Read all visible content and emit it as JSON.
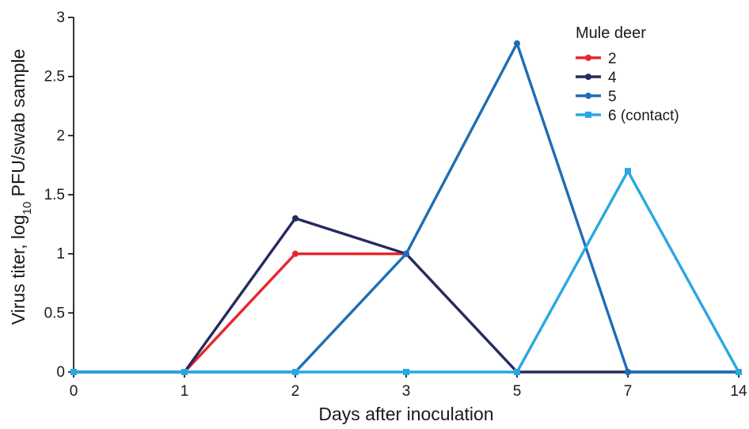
{
  "chart_data": {
    "type": "line",
    "title": "",
    "xlabel": "Days after inoculation",
    "ylabel": {
      "prefix": "Virus titer, log",
      "subscript": "10",
      "suffix": " PFU/swab sample"
    },
    "categories": [
      "0",
      "1",
      "2",
      "3",
      "5",
      "7",
      "14"
    ],
    "ylim": [
      0,
      3
    ],
    "yticks": [
      "0",
      "0.5",
      "1",
      "1.5",
      "2",
      "2.5",
      "3"
    ],
    "grid": false,
    "legend": {
      "title": "Mule deer",
      "placement": "top-right"
    },
    "series": [
      {
        "name": "2",
        "color": "#e8262b",
        "marker": "circle",
        "values": [
          0,
          0,
          1.0,
          1.0,
          null,
          null,
          null
        ]
      },
      {
        "name": "4",
        "color": "#262a5e",
        "marker": "circle",
        "values": [
          0,
          0,
          1.3,
          1.0,
          0,
          0,
          0
        ]
      },
      {
        "name": "5",
        "color": "#1f6db5",
        "marker": "circle",
        "values": [
          0,
          0,
          0,
          1.0,
          2.78,
          0,
          0
        ]
      },
      {
        "name": "6 (contact)",
        "color": "#29a8e0",
        "marker": "square",
        "values": [
          0,
          0,
          0,
          0,
          0,
          1.7,
          0
        ]
      }
    ]
  }
}
